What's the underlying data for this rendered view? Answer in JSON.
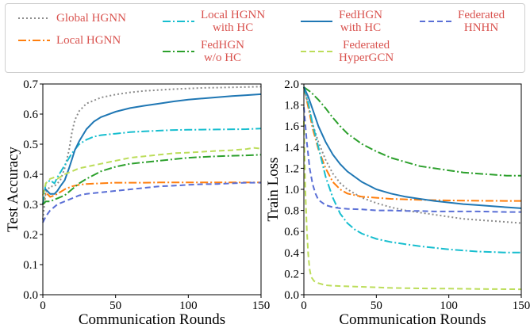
{
  "legend": {
    "items": [
      {
        "label": "Global HGNN",
        "color": "#8c8c8c",
        "dash": "2,3"
      },
      {
        "label": "Local HGNN",
        "color": "#ff7f0e",
        "dash": "10,3,2,3"
      },
      {
        "label": "Local HGNN\n with HC",
        "color": "#17becf",
        "dash": "10,3,2,3"
      },
      {
        "label": "FedHGN\nw/o HC",
        "color": "#2ca02c",
        "dash": "10,3,2,3"
      },
      {
        "label": "FedHGN\nwith HC",
        "color": "#1f77b4",
        "dash": ""
      },
      {
        "label": "Federated\nHyperGCN",
        "color": "#bcdd5a",
        "dash": "7,4"
      },
      {
        "label": "Federated\nHNHN",
        "color": "#5a6fd6",
        "dash": "7,4"
      }
    ]
  },
  "chart_data": [
    {
      "type": "line",
      "xlabel": "Communication Rounds",
      "ylabel": "Test Accuracy",
      "xlim": [
        0,
        150
      ],
      "ylim": [
        0.0,
        0.7
      ],
      "xticks": [
        0,
        50,
        100,
        150
      ],
      "yticks": [
        0.0,
        0.1,
        0.2,
        0.3,
        0.4,
        0.5,
        0.6,
        0.7
      ],
      "series": [
        {
          "name": "Global HGNN",
          "x": [
            0,
            2,
            5,
            8,
            12,
            15,
            18,
            20,
            22,
            25,
            30,
            35,
            40,
            50,
            60,
            70,
            80,
            90,
            100,
            110,
            120,
            130,
            140,
            150
          ],
          "y": [
            0.25,
            0.34,
            0.36,
            0.36,
            0.38,
            0.42,
            0.48,
            0.54,
            0.58,
            0.61,
            0.635,
            0.645,
            0.655,
            0.665,
            0.672,
            0.677,
            0.68,
            0.683,
            0.685,
            0.687,
            0.688,
            0.689,
            0.69,
            0.691
          ]
        },
        {
          "name": "Local HGNN",
          "x": [
            0,
            2,
            5,
            8,
            10,
            15,
            20,
            25,
            30,
            40,
            50,
            60,
            70,
            80,
            100,
            120,
            140,
            150
          ],
          "y": [
            0.3,
            0.34,
            0.325,
            0.33,
            0.335,
            0.35,
            0.36,
            0.365,
            0.368,
            0.37,
            0.372,
            0.372,
            0.372,
            0.373,
            0.373,
            0.373,
            0.373,
            0.373
          ]
        },
        {
          "name": "Local HGNN\n with HC",
          "x": [
            0,
            2,
            5,
            8,
            10,
            15,
            20,
            25,
            30,
            35,
            40,
            50,
            60,
            70,
            80,
            90,
            100,
            120,
            140,
            150
          ],
          "y": [
            0.3,
            0.37,
            0.38,
            0.37,
            0.39,
            0.43,
            0.47,
            0.5,
            0.515,
            0.525,
            0.53,
            0.535,
            0.54,
            0.543,
            0.545,
            0.547,
            0.548,
            0.549,
            0.55,
            0.552
          ]
        },
        {
          "name": "FedHGN\nw/o HC",
          "x": [
            0,
            2,
            5,
            10,
            15,
            20,
            25,
            30,
            40,
            50,
            60,
            70,
            80,
            90,
            100,
            120,
            140,
            150
          ],
          "y": [
            0.3,
            0.31,
            0.31,
            0.32,
            0.33,
            0.35,
            0.37,
            0.385,
            0.41,
            0.425,
            0.435,
            0.44,
            0.445,
            0.45,
            0.455,
            0.46,
            0.463,
            0.465
          ]
        },
        {
          "name": "FedHGN\nwith HC",
          "x": [
            0,
            2,
            5,
            8,
            10,
            12,
            15,
            18,
            20,
            22,
            25,
            30,
            35,
            40,
            50,
            60,
            70,
            80,
            90,
            100,
            110,
            120,
            130,
            140,
            150
          ],
          "y": [
            0.34,
            0.35,
            0.335,
            0.335,
            0.345,
            0.36,
            0.38,
            0.42,
            0.45,
            0.48,
            0.51,
            0.55,
            0.575,
            0.59,
            0.608,
            0.62,
            0.628,
            0.635,
            0.642,
            0.648,
            0.652,
            0.656,
            0.66,
            0.663,
            0.666
          ]
        },
        {
          "name": "Federated\nHyperGCN",
          "x": [
            0,
            2,
            5,
            8,
            10,
            15,
            20,
            25,
            30,
            40,
            50,
            60,
            70,
            80,
            90,
            100,
            110,
            120,
            130,
            140,
            145,
            150
          ],
          "y": [
            0.33,
            0.37,
            0.385,
            0.39,
            0.385,
            0.4,
            0.41,
            0.42,
            0.425,
            0.435,
            0.445,
            0.455,
            0.46,
            0.465,
            0.47,
            0.472,
            0.475,
            0.478,
            0.48,
            0.484,
            0.488,
            0.485
          ]
        },
        {
          "name": "Federated\nHNHN",
          "x": [
            0,
            2,
            5,
            10,
            15,
            20,
            25,
            30,
            40,
            50,
            60,
            70,
            80,
            90,
            100,
            110,
            120,
            130,
            140,
            150
          ],
          "y": [
            0.24,
            0.26,
            0.28,
            0.3,
            0.31,
            0.32,
            0.33,
            0.335,
            0.34,
            0.345,
            0.35,
            0.355,
            0.36,
            0.362,
            0.365,
            0.367,
            0.368,
            0.37,
            0.372,
            0.372
          ]
        }
      ]
    },
    {
      "type": "line",
      "xlabel": "Communication Rounds",
      "ylabel": "Train Loss",
      "xlim": [
        0,
        150
      ],
      "ylim": [
        0.0,
        2.0
      ],
      "xticks": [
        0,
        50,
        100,
        150
      ],
      "yticks": [
        0.0,
        0.2,
        0.4,
        0.6,
        0.8,
        1.0,
        1.2,
        1.4,
        1.6,
        1.8,
        2.0
      ],
      "series": [
        {
          "name": "Global HGNN",
          "x": [
            0,
            3,
            6,
            10,
            15,
            20,
            25,
            30,
            40,
            50,
            60,
            70,
            80,
            90,
            100,
            110,
            120,
            130,
            140,
            150
          ],
          "y": [
            1.97,
            1.8,
            1.62,
            1.45,
            1.28,
            1.15,
            1.06,
            1.0,
            0.92,
            0.87,
            0.83,
            0.8,
            0.78,
            0.76,
            0.74,
            0.72,
            0.71,
            0.7,
            0.69,
            0.68
          ]
        },
        {
          "name": "Local HGNN",
          "x": [
            0,
            3,
            6,
            10,
            15,
            20,
            25,
            30,
            40,
            50,
            60,
            70,
            80,
            90,
            100,
            120,
            140,
            150
          ],
          "y": [
            1.97,
            1.78,
            1.58,
            1.38,
            1.2,
            1.07,
            1.0,
            0.96,
            0.93,
            0.92,
            0.91,
            0.905,
            0.9,
            0.898,
            0.895,
            0.892,
            0.89,
            0.89
          ]
        },
        {
          "name": "Local HGNN\n with HC",
          "x": [
            0,
            3,
            6,
            10,
            15,
            20,
            25,
            30,
            35,
            40,
            50,
            60,
            70,
            80,
            90,
            100,
            110,
            120,
            130,
            140,
            150
          ],
          "y": [
            1.97,
            1.82,
            1.62,
            1.4,
            1.12,
            0.92,
            0.77,
            0.68,
            0.62,
            0.58,
            0.53,
            0.5,
            0.48,
            0.46,
            0.445,
            0.43,
            0.42,
            0.41,
            0.405,
            0.4,
            0.4
          ]
        },
        {
          "name": "FedHGN\nw/o HC",
          "x": [
            0,
            5,
            10,
            15,
            20,
            25,
            30,
            40,
            50,
            60,
            70,
            80,
            90,
            100,
            110,
            120,
            130,
            140,
            150
          ],
          "y": [
            1.97,
            1.92,
            1.85,
            1.77,
            1.68,
            1.6,
            1.53,
            1.43,
            1.36,
            1.3,
            1.26,
            1.22,
            1.2,
            1.18,
            1.16,
            1.15,
            1.14,
            1.13,
            1.13
          ]
        },
        {
          "name": "FedHGN\nwith HC",
          "x": [
            0,
            3,
            6,
            10,
            15,
            20,
            25,
            30,
            40,
            50,
            60,
            70,
            80,
            90,
            100,
            110,
            120,
            130,
            140,
            150
          ],
          "y": [
            1.97,
            1.88,
            1.76,
            1.6,
            1.45,
            1.33,
            1.24,
            1.17,
            1.07,
            1.0,
            0.96,
            0.93,
            0.91,
            0.89,
            0.875,
            0.86,
            0.85,
            0.84,
            0.83,
            0.82
          ]
        },
        {
          "name": "Federated\nHyperGCN",
          "x": [
            0,
            1,
            2,
            3,
            4,
            5,
            7,
            10,
            15,
            20,
            30,
            40,
            50,
            60,
            80,
            100,
            120,
            140,
            150
          ],
          "y": [
            1.65,
            1.0,
            0.62,
            0.38,
            0.24,
            0.17,
            0.13,
            0.11,
            0.09,
            0.085,
            0.08,
            0.075,
            0.07,
            0.065,
            0.06,
            0.058,
            0.055,
            0.053,
            0.052
          ]
        },
        {
          "name": "Federated\nHNHN",
          "x": [
            0,
            2,
            4,
            6,
            8,
            10,
            15,
            20,
            25,
            30,
            40,
            50,
            60,
            70,
            80,
            90,
            100,
            120,
            140,
            150
          ],
          "y": [
            1.78,
            1.45,
            1.2,
            1.05,
            0.96,
            0.9,
            0.85,
            0.83,
            0.82,
            0.815,
            0.81,
            0.8,
            0.8,
            0.795,
            0.795,
            0.79,
            0.79,
            0.79,
            0.785,
            0.785
          ]
        }
      ]
    }
  ]
}
